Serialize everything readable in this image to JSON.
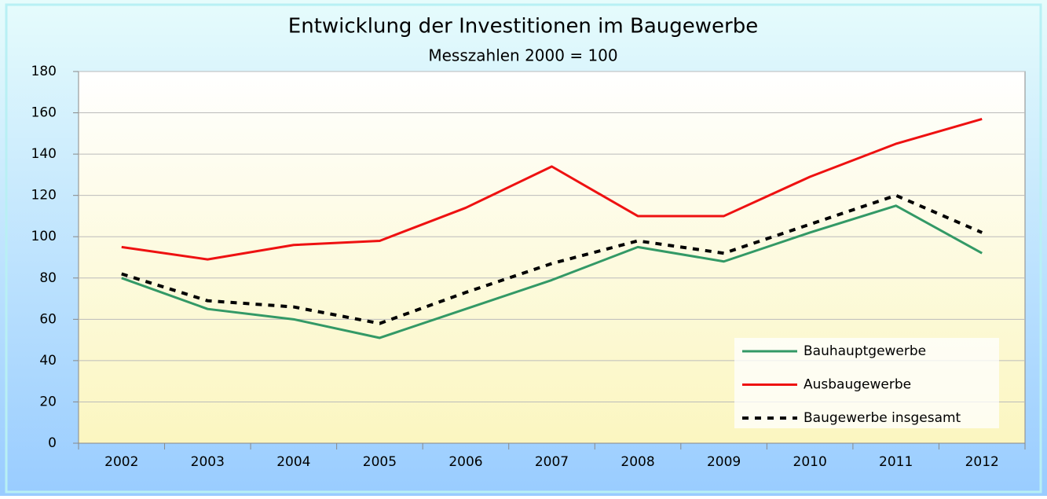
{
  "chart_data": {
    "type": "line",
    "title": "Entwicklung der Investitionen im Baugewerbe",
    "subtitle": "Messzahlen 2000 = 100",
    "categories": [
      "2002",
      "2003",
      "2004",
      "2005",
      "2006",
      "2007",
      "2008",
      "2009",
      "2010",
      "2011",
      "2012"
    ],
    "series": [
      {
        "name": "Bauhauptgewerbe",
        "color": "#339966",
        "values": [
          80,
          65,
          60,
          51,
          65,
          79,
          95,
          88,
          102,
          115,
          92
        ]
      },
      {
        "name": "Ausbaugewerbe",
        "color": "#ee1111",
        "values": [
          95,
          89,
          96,
          98,
          114,
          134,
          110,
          110,
          129,
          145,
          157
        ]
      },
      {
        "name": "Baugewerbe insgesamt",
        "color": "#000000",
        "dashed": true,
        "values": [
          82,
          69,
          66,
          58,
          73,
          87,
          98,
          92,
          106,
          120,
          102
        ]
      }
    ],
    "ylim": [
      0,
      180
    ],
    "yticks": [
      0,
      20,
      40,
      60,
      80,
      100,
      120,
      140,
      160,
      180
    ],
    "grid": true,
    "legend": "lower right"
  }
}
